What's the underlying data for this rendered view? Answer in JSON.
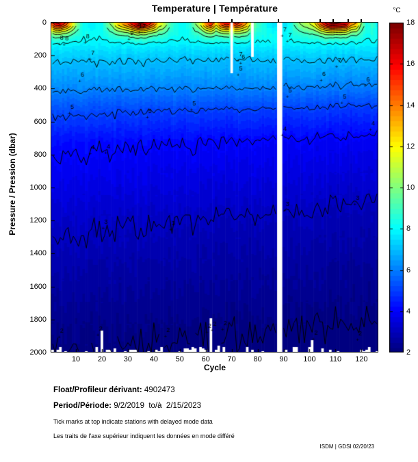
{
  "title": "Temperature | Température",
  "colorbar": {
    "unit": "°C",
    "min": 2,
    "max": 18,
    "ticks": [
      2,
      4,
      6,
      8,
      10,
      12,
      14,
      16,
      18
    ],
    "colormap": "jet",
    "end_colors": {
      "low": "#000080",
      "high": "#800000"
    }
  },
  "axes": {
    "x": {
      "label": "Cycle",
      "min": 1,
      "max": 126,
      "ticks": [
        10,
        20,
        30,
        40,
        50,
        60,
        70,
        80,
        90,
        100,
        110,
        120
      ]
    },
    "y": {
      "label": "Pressure / Pression (dbar)",
      "min": 0,
      "max": 2000,
      "ticks": [
        0,
        200,
        400,
        600,
        800,
        1000,
        1200,
        1400,
        1600,
        1800,
        2000
      ],
      "reversed": true
    }
  },
  "chart_data": {
    "type": "heatmap",
    "x_name": "cycle",
    "y_name": "pressure_dbar",
    "z_name": "temperature_C",
    "z_range": [
      2,
      18
    ],
    "contour_levels": [
      2,
      3,
      4,
      5,
      6,
      7,
      8,
      9,
      10,
      11,
      12,
      13,
      14,
      15,
      16,
      17
    ],
    "depth_profile": [
      [
        0,
        8.6
      ],
      [
        60,
        8.35
      ],
      [
        100,
        8.1
      ],
      [
        150,
        7.6
      ],
      [
        230,
        7.0
      ],
      [
        300,
        6.6
      ],
      [
        400,
        6.0
      ],
      [
        530,
        5.0
      ],
      [
        720,
        4.0
      ],
      [
        900,
        3.6
      ],
      [
        1180,
        3.0
      ],
      [
        1500,
        2.5
      ],
      [
        1890,
        2.0
      ],
      [
        2000,
        1.93
      ]
    ],
    "surface_series": [
      [
        1,
        15
      ],
      [
        2,
        16
      ],
      [
        4,
        16.5
      ],
      [
        6,
        15
      ],
      [
        8,
        13
      ],
      [
        10,
        10.5
      ],
      [
        12,
        8.5
      ],
      [
        14,
        8
      ],
      [
        16,
        7.8
      ],
      [
        18,
        8
      ],
      [
        20,
        8.2
      ],
      [
        22,
        9.5
      ],
      [
        24,
        10.5
      ],
      [
        26,
        12.5
      ],
      [
        28,
        13.5
      ],
      [
        30,
        14.5
      ],
      [
        32,
        16
      ],
      [
        34,
        17.5
      ],
      [
        36,
        17
      ],
      [
        38,
        16
      ],
      [
        40,
        14.5
      ],
      [
        42,
        12
      ],
      [
        44,
        11
      ],
      [
        46,
        9.5
      ],
      [
        48,
        8.5
      ],
      [
        50,
        8
      ],
      [
        52,
        8.2
      ],
      [
        54,
        8.5
      ],
      [
        56,
        10
      ],
      [
        58,
        11.5
      ],
      [
        60,
        14
      ],
      [
        62,
        15.5
      ],
      [
        64,
        12.5
      ],
      [
        66,
        15
      ],
      [
        68,
        16
      ],
      [
        70,
        15
      ],
      [
        72,
        15.5
      ],
      [
        74,
        14.5
      ],
      [
        76,
        13
      ],
      [
        78,
        10
      ],
      [
        80,
        9
      ],
      [
        82,
        8.5
      ],
      [
        84,
        7.8
      ],
      [
        86,
        7.5
      ],
      [
        88,
        7.5
      ],
      [
        90,
        7.5
      ],
      [
        92,
        8
      ],
      [
        94,
        9
      ],
      [
        96,
        10
      ],
      [
        98,
        10.5
      ],
      [
        100,
        11
      ],
      [
        102,
        12
      ],
      [
        104,
        14.5
      ],
      [
        106,
        16
      ],
      [
        108,
        17.5
      ],
      [
        110,
        17.5
      ],
      [
        112,
        17
      ],
      [
        114,
        16.5
      ],
      [
        116,
        14
      ],
      [
        118,
        13
      ],
      [
        120,
        10
      ],
      [
        122,
        8.5
      ],
      [
        124,
        8.8
      ],
      [
        126,
        8
      ]
    ],
    "missing_columns": {
      "full_cycles": [
        88,
        89
      ],
      "partial": [
        {
          "cycle": 70,
          "from_dbar": 0,
          "to_dbar": 300
        },
        {
          "cycle": 78,
          "from_dbar": 0,
          "to_dbar": 200
        }
      ]
    },
    "bottom_gaps": {
      "typical_max_dbar": 1975,
      "overrides": {
        "20": 1860,
        "62": 1790,
        "101": 1925
      }
    },
    "delayed_mode_tick_cycles": [
      61,
      70,
      88,
      104,
      109,
      115,
      120
    ],
    "contour_labels": [
      {
        "level": 8,
        "cycle": 4,
        "dbar": 110
      },
      {
        "level": 8,
        "cycle": 6,
        "dbar": 115
      },
      {
        "level": 8,
        "cycle": 14,
        "dbar": 105
      },
      {
        "level": 9,
        "cycle": 31,
        "dbar": 85
      },
      {
        "level": 12,
        "cycle": 35,
        "dbar": 42
      },
      {
        "level": 7,
        "cycle": 16,
        "dbar": 205
      },
      {
        "level": 7,
        "cycle": 73,
        "dbar": 210
      },
      {
        "level": 7,
        "cycle": 90,
        "dbar": 62
      },
      {
        "level": 7,
        "cycle": 92,
        "dbar": 95
      },
      {
        "level": 7,
        "cycle": 111,
        "dbar": 250
      },
      {
        "level": 6,
        "cycle": 12,
        "dbar": 335
      },
      {
        "level": 6,
        "cycle": 74,
        "dbar": 230
      },
      {
        "level": 6,
        "cycle": 105,
        "dbar": 330
      },
      {
        "level": 6,
        "cycle": 122,
        "dbar": 365
      },
      {
        "level": 5,
        "cycle": 8,
        "dbar": 530
      },
      {
        "level": 5,
        "cycle": 38,
        "dbar": 555
      },
      {
        "level": 5,
        "cycle": 55,
        "dbar": 510
      },
      {
        "level": 5,
        "cycle": 73,
        "dbar": 300
      },
      {
        "level": 5,
        "cycle": 92,
        "dbar": 430
      },
      {
        "level": 5,
        "cycle": 113,
        "dbar": 470
      },
      {
        "level": 4,
        "cycle": 16,
        "dbar": 775
      },
      {
        "level": 4,
        "cycle": 22,
        "dbar": 770
      },
      {
        "level": 4,
        "cycle": 90,
        "dbar": 664
      },
      {
        "level": 4,
        "cycle": 124,
        "dbar": 630
      },
      {
        "level": 3,
        "cycle": 21,
        "dbar": 1230
      },
      {
        "level": 3,
        "cycle": 47,
        "dbar": 1235
      },
      {
        "level": 3,
        "cycle": 91,
        "dbar": 1120
      },
      {
        "level": 3,
        "cycle": 118,
        "dbar": 1085
      },
      {
        "level": 2,
        "cycle": 4,
        "dbar": 1890
      },
      {
        "level": 2,
        "cycle": 19,
        "dbar": 1875
      },
      {
        "level": 2,
        "cycle": 45,
        "dbar": 1885
      },
      {
        "level": 2,
        "cycle": 61,
        "dbar": 1860
      },
      {
        "level": 2,
        "cycle": 63,
        "dbar": 1848
      },
      {
        "level": 2,
        "cycle": 67,
        "dbar": 1843
      },
      {
        "level": 2,
        "cycle": 102,
        "dbar": 1900
      },
      {
        "level": 2,
        "cycle": 119,
        "dbar": 1905
      }
    ]
  },
  "footer": {
    "float_label": "Float/Profileur dérivant:",
    "float_value": " 4902473",
    "period_label": "Period/Période:",
    "period_value": " 9/2/2019  to/à  2/15/2023",
    "note_en": "Tick marks at top indicate stations with delayed mode data",
    "note_fr": "Les traits de l'axe supérieur indiquent les données en mode différé"
  },
  "credit": "ISDM | GDSI 02/20/23"
}
